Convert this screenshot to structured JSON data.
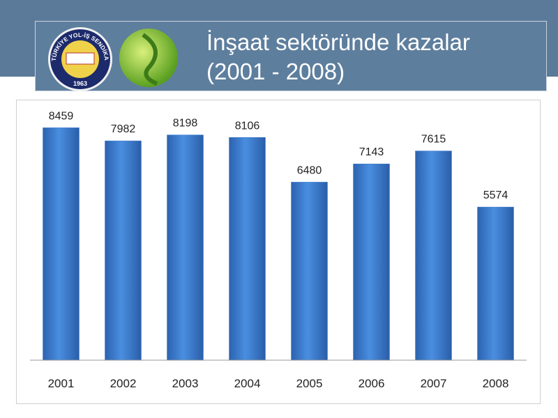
{
  "logo": {
    "text": "TÜRKİYE YOL-İŞ SENDİKASI",
    "year": "1963"
  },
  "chart_data": {
    "type": "bar",
    "title": "İnşaat sektöründe kazalar (2001 - 2008)",
    "categories": [
      "2001",
      "2002",
      "2003",
      "2004",
      "2005",
      "2006",
      "2007",
      "2008"
    ],
    "values": [
      8459,
      7982,
      8198,
      8106,
      6480,
      7143,
      7615,
      5574
    ],
    "color": "#3f7fcf",
    "ylim": [
      0,
      9000
    ]
  }
}
